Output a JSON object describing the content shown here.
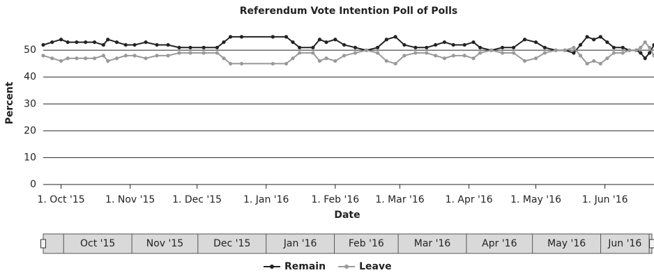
{
  "chart_data": {
    "type": "line",
    "title": "Referendum Vote Intention Poll of Polls",
    "x_label": "Date",
    "y_label": "Percent",
    "x": [
      "2015-09-23",
      "2015-09-27",
      "2015-10-01",
      "2015-10-04",
      "2015-10-08",
      "2015-10-12",
      "2015-10-16",
      "2015-10-20",
      "2015-10-22",
      "2015-10-26",
      "2015-10-30",
      "2015-11-03",
      "2015-11-08",
      "2015-11-13",
      "2015-11-18",
      "2015-11-23",
      "2015-11-28",
      "2015-12-04",
      "2015-12-10",
      "2015-12-13",
      "2015-12-16",
      "2015-12-21",
      "2016-01-04",
      "2016-01-10",
      "2016-01-13",
      "2016-01-16",
      "2016-01-22",
      "2016-01-25",
      "2016-01-28",
      "2016-02-01",
      "2016-02-05",
      "2016-02-10",
      "2016-02-15",
      "2016-02-20",
      "2016-02-24",
      "2016-02-28",
      "2016-03-03",
      "2016-03-08",
      "2016-03-13",
      "2016-03-17",
      "2016-03-21",
      "2016-03-25",
      "2016-03-30",
      "2016-04-03",
      "2016-04-06",
      "2016-04-11",
      "2016-04-16",
      "2016-04-21",
      "2016-04-26",
      "2016-05-01",
      "2016-05-05",
      "2016-05-10",
      "2016-05-14",
      "2016-05-18",
      "2016-05-21",
      "2016-05-24",
      "2016-05-27",
      "2016-05-30",
      "2016-06-02",
      "2016-06-05",
      "2016-06-09",
      "2016-06-12",
      "2016-06-15",
      "2016-06-17",
      "2016-06-19",
      "2016-06-21",
      "2016-06-23"
    ],
    "series": [
      {
        "name": "Remain",
        "color": "#222222",
        "values": [
          52,
          53,
          54,
          53,
          53,
          53,
          53,
          52,
          54,
          53,
          52,
          52,
          53,
          52,
          52,
          51,
          51,
          51,
          51,
          53,
          55,
          55,
          55,
          55,
          53,
          51,
          51,
          54,
          53,
          54,
          52,
          51,
          50,
          51,
          54,
          55,
          52,
          51,
          51,
          52,
          53,
          52,
          52,
          53,
          51,
          50,
          51,
          51,
          54,
          53,
          51,
          50,
          50,
          49,
          52,
          55,
          54,
          55,
          53,
          51,
          51,
          50,
          50,
          49,
          47,
          49,
          52
        ]
      },
      {
        "name": "Leave",
        "color": "#999999",
        "values": [
          48,
          47,
          46,
          47,
          47,
          47,
          47,
          48,
          46,
          47,
          48,
          48,
          47,
          48,
          48,
          49,
          49,
          49,
          49,
          47,
          45,
          45,
          45,
          45,
          47,
          49,
          49,
          46,
          47,
          46,
          48,
          49,
          50,
          49,
          46,
          45,
          48,
          49,
          49,
          48,
          47,
          48,
          48,
          47,
          49,
          50,
          49,
          49,
          46,
          47,
          49,
          50,
          50,
          51,
          48,
          45,
          46,
          45,
          47,
          49,
          49,
          50,
          50,
          51,
          53,
          51,
          48
        ]
      }
    ],
    "xlim": [
      "2015-09-23",
      "2016-06-23"
    ],
    "xticks": [
      {
        "value": "2015-10-01",
        "label": "1. Oct '15"
      },
      {
        "value": "2015-11-01",
        "label": "1. Nov '15"
      },
      {
        "value": "2015-12-01",
        "label": "1. Dec '15"
      },
      {
        "value": "2016-01-01",
        "label": "1. Jan '16"
      },
      {
        "value": "2016-02-01",
        "label": "1. Feb '16"
      },
      {
        "value": "2016-03-01",
        "label": "1. Mar '16"
      },
      {
        "value": "2016-04-01",
        "label": "1. Apr '16"
      },
      {
        "value": "2016-05-01",
        "label": "1. May '16"
      },
      {
        "value": "2016-06-01",
        "label": "1. Jun '16"
      }
    ],
    "ylim": [
      0,
      60
    ],
    "yticks": [
      0,
      10,
      20,
      30,
      40,
      50
    ],
    "grid": true,
    "legend": "bottom",
    "navigator": [
      "Oct '15",
      "Nov '15",
      "Dec '15",
      "Jan '16",
      "Feb '16",
      "Mar '16",
      "Apr '16",
      "May '16",
      "Jun '16"
    ]
  }
}
